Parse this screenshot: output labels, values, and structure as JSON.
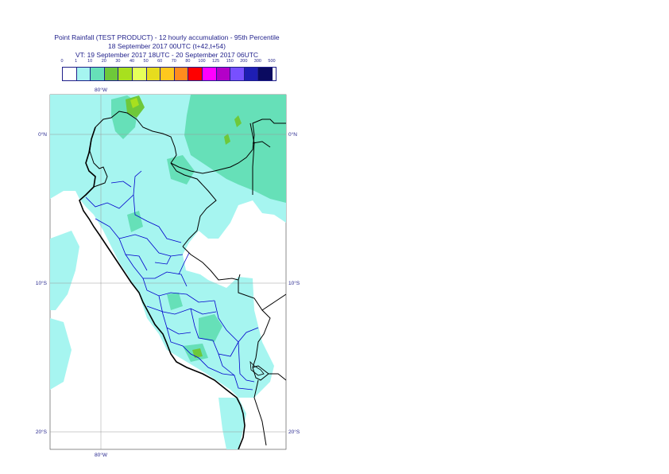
{
  "title": {
    "line1": "Point Rainfall (TEST PRODUCT) - 12 hourly accumulation - 95th Percentile",
    "line2": "18 September 2017 00UTC (t+42,t+54)",
    "line3": "VT: 19 September 2017 18UTC - 20 September 2017 06UTC"
  },
  "legend": {
    "ticks": [
      "0",
      "1",
      "10",
      "20",
      "30",
      "40",
      "50",
      "60",
      "70",
      "80",
      "100",
      "125",
      "150",
      "200",
      "300",
      "500"
    ],
    "colors": [
      "#ffffff",
      "#a6f5f0",
      "#66e0b8",
      "#6ec83a",
      "#a8e01e",
      "#e6ff5a",
      "#e6dc1e",
      "#ffc81e",
      "#ff8c1e",
      "#ff0000",
      "#ff00ff",
      "#b400c8",
      "#7850ff",
      "#1e1eb4",
      "#0a0a60"
    ]
  },
  "axes": {
    "lon_top": "80°W",
    "lon_bottom": "80°W",
    "lat_labels": [
      {
        "left": "0°N",
        "right": "0°N"
      },
      {
        "left": "10°S",
        "right": "10°S"
      },
      {
        "left": "20°S",
        "right": "20°S"
      }
    ]
  },
  "colors": {
    "light_rain": "#a6f5f0",
    "moderate_rain": "#66e0b8",
    "heavy_rain": "#6ec83a",
    "very_heavy_rain": "#a8e01e",
    "country_border": "#000000",
    "region_border": "#0000cc",
    "grid": "#999999"
  }
}
